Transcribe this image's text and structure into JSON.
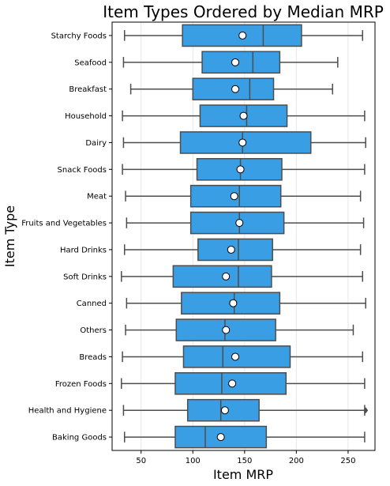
{
  "chart_data": {
    "type": "boxplot",
    "title": "Item Types Ordered by Median MRP",
    "xlabel": "Item MRP",
    "ylabel": "Item Type",
    "xlim": [
      22,
      276
    ],
    "xticks": [
      50,
      100,
      150,
      200,
      250
    ],
    "grid": "vertical",
    "box_color": "#3a9ee4",
    "edge_color": "#4d4d4d",
    "mean_marker_color": "#ffffff",
    "categories": [
      "Starchy Foods",
      "Seafood",
      "Breakfast",
      "Household",
      "Dairy",
      "Snack Foods",
      "Meat",
      "Fruits and Vegetables",
      "Hard Drinks",
      "Soft Drinks",
      "Canned",
      "Others",
      "Breads",
      "Frozen Foods",
      "Health and Hygiene",
      "Baking Goods"
    ],
    "series": [
      {
        "category": "Starchy Foods",
        "whisker_low": 34,
        "q1": 90,
        "median": 168,
        "q3": 205,
        "whisker_high": 264,
        "mean": 148,
        "outliers": []
      },
      {
        "category": "Seafood",
        "whisker_low": 33,
        "q1": 109,
        "median": 158,
        "q3": 184,
        "whisker_high": 240,
        "mean": 141,
        "outliers": []
      },
      {
        "category": "Breakfast",
        "whisker_low": 40,
        "q1": 100,
        "median": 155,
        "q3": 178,
        "whisker_high": 235,
        "mean": 141,
        "outliers": []
      },
      {
        "category": "Household",
        "whisker_low": 32,
        "q1": 107,
        "median": 152,
        "q3": 191,
        "whisker_high": 266,
        "mean": 149,
        "outliers": []
      },
      {
        "category": "Dairy",
        "whisker_low": 33,
        "q1": 88,
        "median": 148,
        "q3": 214,
        "whisker_high": 267,
        "mean": 148,
        "outliers": []
      },
      {
        "category": "Snack Foods",
        "whisker_low": 32,
        "q1": 104,
        "median": 146,
        "q3": 186,
        "whisker_high": 266,
        "mean": 146,
        "outliers": []
      },
      {
        "category": "Meat",
        "whisker_low": 35,
        "q1": 98,
        "median": 145,
        "q3": 185,
        "whisker_high": 262,
        "mean": 140,
        "outliers": []
      },
      {
        "category": "Fruits and Vegetables",
        "whisker_low": 36,
        "q1": 98,
        "median": 145,
        "q3": 188,
        "whisker_high": 265,
        "mean": 145,
        "outliers": []
      },
      {
        "category": "Hard Drinks",
        "whisker_low": 34,
        "q1": 105,
        "median": 144,
        "q3": 177,
        "whisker_high": 262,
        "mean": 137,
        "outliers": []
      },
      {
        "category": "Soft Drinks",
        "whisker_low": 31,
        "q1": 81,
        "median": 144,
        "q3": 176,
        "whisker_high": 264,
        "mean": 132,
        "outliers": []
      },
      {
        "category": "Canned",
        "whisker_low": 36,
        "q1": 89,
        "median": 140,
        "q3": 184,
        "whisker_high": 267,
        "mean": 139,
        "outliers": []
      },
      {
        "category": "Others",
        "whisker_low": 35,
        "q1": 84,
        "median": 131,
        "q3": 180,
        "whisker_high": 255,
        "mean": 132,
        "outliers": []
      },
      {
        "category": "Breads",
        "whisker_low": 32,
        "q1": 91,
        "median": 129,
        "q3": 194,
        "whisker_high": 264,
        "mean": 141,
        "outliers": []
      },
      {
        "category": "Frozen Foods",
        "whisker_low": 31,
        "q1": 83,
        "median": 128,
        "q3": 190,
        "whisker_high": 266,
        "mean": 138,
        "outliers": []
      },
      {
        "category": "Health and Hygiene",
        "whisker_low": 33,
        "q1": 95,
        "median": 127,
        "q3": 164,
        "whisker_high": 266,
        "mean": 131,
        "outliers": [
          267
        ]
      },
      {
        "category": "Baking Goods",
        "whisker_low": 34,
        "q1": 83,
        "median": 112,
        "q3": 171,
        "whisker_high": 266,
        "mean": 127,
        "outliers": []
      }
    ]
  }
}
